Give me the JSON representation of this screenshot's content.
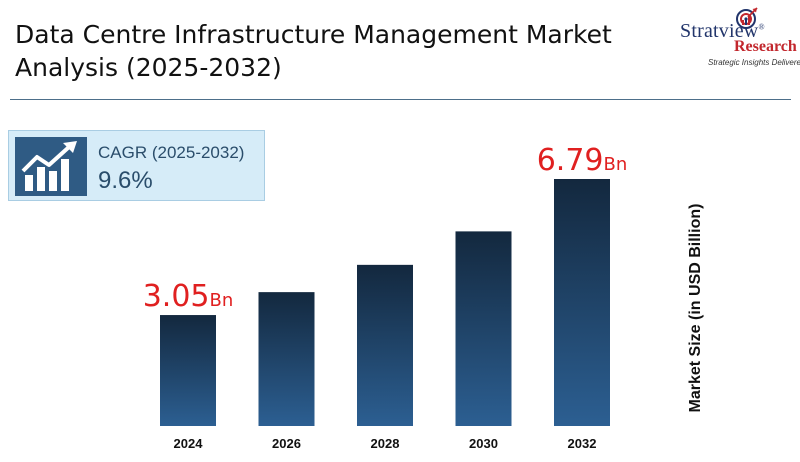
{
  "header": {
    "title_line1": "Data Centre Infrastructure Management Market",
    "title_line2": "Analysis (2025-2032)"
  },
  "logo": {
    "brand_line1": "Stratview",
    "brand_line2": "Research",
    "tagline": "Strategic Insights Delivered",
    "registered_mark": "®"
  },
  "cagr": {
    "label": "CAGR (2025-2032)",
    "value": "9.6%",
    "icon": "growth-chart-icon"
  },
  "chart_data": {
    "type": "bar",
    "categories": [
      "2024",
      "2026",
      "2028",
      "2030",
      "2032"
    ],
    "values": [
      3.05,
      3.68,
      4.43,
      5.35,
      6.79
    ],
    "ylabel": "Market Size (in USD Billion)",
    "ylim": [
      0,
      7.5
    ],
    "grid": false,
    "data_labels": [
      {
        "category": "2024",
        "number": "3.05",
        "unit": "Bn"
      },
      {
        "category": "2032",
        "number": "6.79",
        "unit": "Bn"
      }
    ]
  },
  "colors": {
    "bar_top": "#13283e",
    "bar_bottom": "#2c5f92",
    "value_label": "#e02020",
    "divider": "#4d6f8a",
    "cagr_bg": "#d6ecf8",
    "cagr_icon_bg": "#2f5b84",
    "brand_blue": "#22356b",
    "brand_red": "#c2272d"
  }
}
